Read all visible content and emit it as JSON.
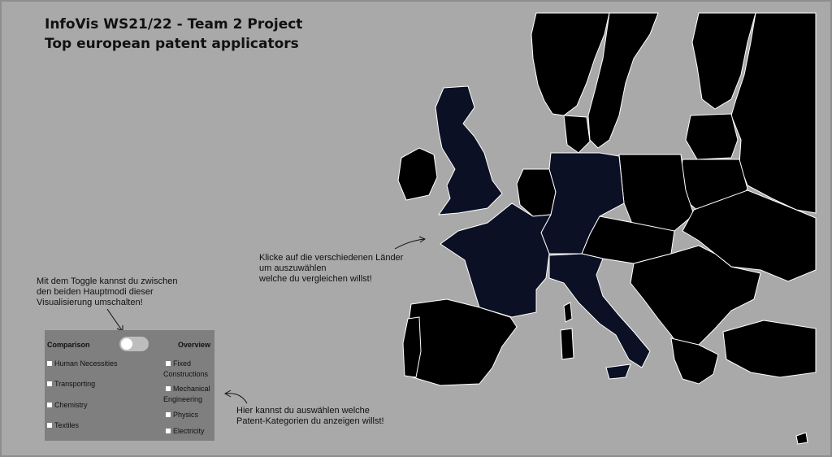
{
  "title": {
    "line1": "InfoVis WS21/22 - Team 2 Project",
    "line2": "Top european patent applicators"
  },
  "hints": {
    "toggle_line1": "Mit dem Toggle kannst du zwischen",
    "toggle_line2": "den beiden Hauptmodi dieser",
    "toggle_line3": "Visualisierung umschalten!",
    "countries_line1": "Klicke auf die verschiedenen Länder",
    "countries_line2": "um auszuwählen",
    "countries_line3": "welche du vergleichen willst!",
    "categories_line1": "Hier kannst du auswählen welche",
    "categories_line2": "Patent-Kategorien du anzeigen willst!"
  },
  "panel": {
    "comparison_label": "Comparison",
    "overview_label": "Overview",
    "toggle_state": "comparison",
    "categories_left": [
      "Human Necessities",
      "Transporting",
      "Chemistry",
      "Textiles"
    ],
    "categories_right": [
      "Fixed Constructions",
      "Mechanical Engineering",
      "Physics",
      "Electricity"
    ]
  },
  "map": {
    "selected_countries": [
      "United Kingdom",
      "France",
      "Germany",
      "Italy"
    ],
    "selected_color": "#0b1024",
    "unselected_color": "#000000",
    "border_color": "#ffffff",
    "background_color": "#a9a9a9"
  }
}
